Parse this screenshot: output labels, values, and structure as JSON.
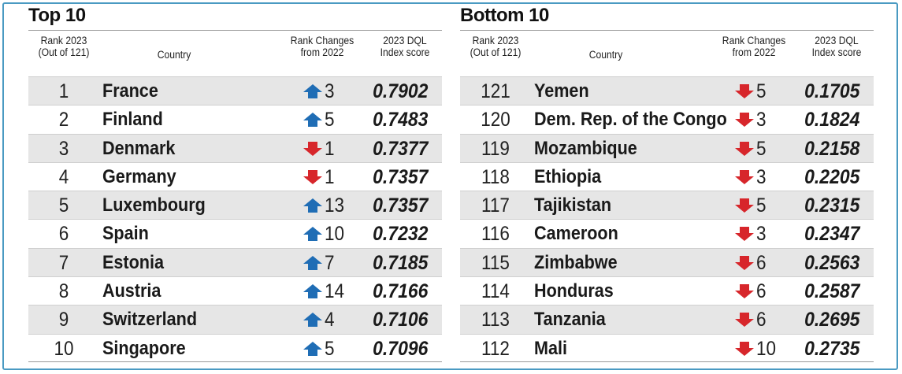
{
  "chart_data": [
    {
      "type": "table",
      "title": "Top 10",
      "columns": [
        "Rank 2023\n(Out of 121)",
        "Country",
        "Rank Changes\nfrom 2022",
        "2023 DQL\nIndex score"
      ],
      "rows": [
        {
          "rank": "1",
          "country": "France",
          "direction": "up",
          "change": "3",
          "score": "0.7902"
        },
        {
          "rank": "2",
          "country": "Finland",
          "direction": "up",
          "change": "5",
          "score": "0.7483"
        },
        {
          "rank": "3",
          "country": "Denmark",
          "direction": "down",
          "change": "1",
          "score": "0.7377"
        },
        {
          "rank": "4",
          "country": "Germany",
          "direction": "down",
          "change": "1",
          "score": "0.7357"
        },
        {
          "rank": "5",
          "country": "Luxembourg",
          "direction": "up",
          "change": "13",
          "score": "0.7357"
        },
        {
          "rank": "6",
          "country": "Spain",
          "direction": "up",
          "change": "10",
          "score": "0.7232"
        },
        {
          "rank": "7",
          "country": "Estonia",
          "direction": "up",
          "change": "7",
          "score": "0.7185"
        },
        {
          "rank": "8",
          "country": "Austria",
          "direction": "up",
          "change": "14",
          "score": "0.7166"
        },
        {
          "rank": "9",
          "country": "Switzerland",
          "direction": "up",
          "change": "4",
          "score": "0.7106"
        },
        {
          "rank": "10",
          "country": "Singapore",
          "direction": "up",
          "change": "5",
          "score": "0.7096"
        }
      ]
    },
    {
      "type": "table",
      "title": "Bottom 10",
      "columns": [
        "Rank 2023\n(Out of 121)",
        "Country",
        "Rank Changes\nfrom 2022",
        "2023 DQL\nIndex score"
      ],
      "rows": [
        {
          "rank": "121",
          "country": "Yemen",
          "direction": "down",
          "change": "5",
          "score": "0.1705"
        },
        {
          "rank": "120",
          "country": "Dem. Rep. of the Congo",
          "direction": "down",
          "change": "3",
          "score": "0.1824"
        },
        {
          "rank": "119",
          "country": "Mozambique",
          "direction": "down",
          "change": "5",
          "score": "0.2158"
        },
        {
          "rank": "118",
          "country": "Ethiopia",
          "direction": "down",
          "change": "3",
          "score": "0.2205"
        },
        {
          "rank": "117",
          "country": "Tajikistan",
          "direction": "down",
          "change": "5",
          "score": "0.2315"
        },
        {
          "rank": "116",
          "country": "Cameroon",
          "direction": "down",
          "change": "3",
          "score": "0.2347"
        },
        {
          "rank": "115",
          "country": "Zimbabwe",
          "direction": "down",
          "change": "6",
          "score": "0.2563"
        },
        {
          "rank": "114",
          "country": "Honduras",
          "direction": "down",
          "change": "6",
          "score": "0.2587"
        },
        {
          "rank": "113",
          "country": "Tanzania",
          "direction": "down",
          "change": "6",
          "score": "0.2695"
        },
        {
          "rank": "112",
          "country": "Mali",
          "direction": "down",
          "change": "10",
          "score": "0.2735"
        }
      ]
    }
  ],
  "colors": {
    "up_arrow": "#1f6db5",
    "down_arrow": "#d7262b",
    "shade": "#e6e6e6",
    "frame": "#4a9ac2"
  },
  "icons": {
    "up": "up-arrow-icon",
    "down": "down-arrow-icon"
  }
}
